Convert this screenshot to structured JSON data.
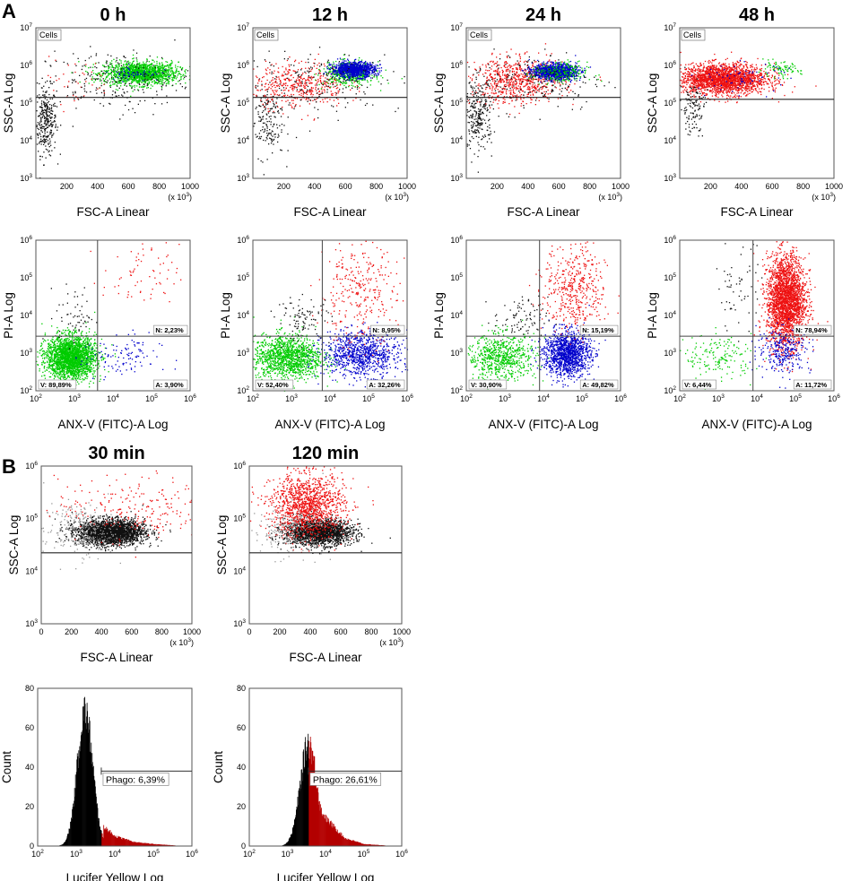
{
  "figure": {
    "panel_A_label": "A",
    "panel_B_label": "B",
    "x1e3": "(x 10",
    "x1e3_exp": "3",
    "x1e3_close": ")"
  },
  "colors": {
    "viable": "#00cc00",
    "early_apoptotic": "#0000cc",
    "necrotic": "#ee1111",
    "debris": "#111111",
    "gate_line": "#333333",
    "hist_black": "#000000",
    "hist_red": "#b30000"
  },
  "chart_data": [
    {
      "id": "A-scatter-0h",
      "type": "scatter",
      "title": "0 h",
      "gate": "Cells",
      "xlabel": "FSC-A Linear",
      "ylabel": "SSC-A Log",
      "xlim": [
        0,
        1000
      ],
      "xticks": [
        200,
        400,
        600,
        800,
        1000
      ],
      "yticks": [
        "3",
        "4",
        "5",
        "6",
        "7"
      ],
      "gate_y_exp": 5.15,
      "populations": [
        {
          "name": "debris",
          "color": "#111111",
          "cx": 60,
          "cy": 4.55,
          "sx": 35,
          "sy": 0.45,
          "n": 320
        },
        {
          "name": "viable",
          "color": "#00cc00",
          "cx": 680,
          "cy": 5.8,
          "sx": 120,
          "sy": 0.15,
          "n": 1500
        },
        {
          "name": "early_apoptotic",
          "color": "#0000cc",
          "cx": 640,
          "cy": 5.8,
          "sx": 80,
          "sy": 0.1,
          "n": 60
        },
        {
          "name": "necrotic",
          "color": "#ee1111",
          "cx": 250,
          "cy": 5.6,
          "sx": 120,
          "sy": 0.3,
          "n": 40
        },
        {
          "name": "background",
          "color": "#111111",
          "cx": 500,
          "cy": 5.6,
          "sx": 250,
          "sy": 0.4,
          "n": 250
        }
      ]
    },
    {
      "id": "A-scatter-12h",
      "type": "scatter",
      "title": "12 h",
      "gate": "Cells",
      "xlabel": "FSC-A Linear",
      "ylabel": "SSC-A Log",
      "xlim": [
        0,
        1000
      ],
      "xticks": [
        200,
        400,
        600,
        800,
        1000
      ],
      "yticks": [
        "3",
        "4",
        "5",
        "6",
        "7"
      ],
      "gate_y_exp": 5.15,
      "populations": [
        {
          "name": "debris",
          "color": "#111111",
          "cx": 80,
          "cy": 4.6,
          "sx": 60,
          "sy": 0.5,
          "n": 200
        },
        {
          "name": "necrotic",
          "color": "#ee1111",
          "cx": 300,
          "cy": 5.5,
          "sx": 150,
          "sy": 0.3,
          "n": 450
        },
        {
          "name": "viable",
          "color": "#00cc00",
          "cx": 620,
          "cy": 5.8,
          "sx": 80,
          "sy": 0.15,
          "n": 500
        },
        {
          "name": "early_apoptotic",
          "color": "#0000cc",
          "cx": 650,
          "cy": 5.9,
          "sx": 70,
          "sy": 0.1,
          "n": 900
        },
        {
          "name": "background",
          "color": "#111111",
          "cx": 450,
          "cy": 5.6,
          "sx": 250,
          "sy": 0.4,
          "n": 180
        }
      ]
    },
    {
      "id": "A-scatter-24h",
      "type": "scatter",
      "title": "24 h",
      "gate": "Cells",
      "xlabel": "FSC-A Linear",
      "ylabel": "SSC-A Log",
      "xlim": [
        0,
        1000
      ],
      "xticks": [
        200,
        400,
        600,
        800,
        1000
      ],
      "yticks": [
        "3",
        "4",
        "5",
        "6",
        "7"
      ],
      "gate_y_exp": 5.15,
      "populations": [
        {
          "name": "debris",
          "color": "#111111",
          "cx": 70,
          "cy": 4.7,
          "sx": 50,
          "sy": 0.45,
          "n": 300
        },
        {
          "name": "necrotic",
          "color": "#ee1111",
          "cx": 330,
          "cy": 5.6,
          "sx": 150,
          "sy": 0.3,
          "n": 700
        },
        {
          "name": "early_apoptotic",
          "color": "#0000cc",
          "cx": 570,
          "cy": 5.85,
          "sx": 70,
          "sy": 0.1,
          "n": 1200
        },
        {
          "name": "viable",
          "color": "#00cc00",
          "cx": 600,
          "cy": 5.8,
          "sx": 90,
          "sy": 0.15,
          "n": 200
        },
        {
          "name": "background",
          "color": "#111111",
          "cx": 400,
          "cy": 5.6,
          "sx": 250,
          "sy": 0.4,
          "n": 200
        }
      ]
    },
    {
      "id": "A-scatter-48h",
      "type": "scatter",
      "title": "48 h",
      "gate": "Cells",
      "xlabel": "FSC-A Linear",
      "ylabel": "SSC-A Log",
      "xlim": [
        0,
        1000
      ],
      "xticks": [
        200,
        400,
        600,
        800,
        1000
      ],
      "yticks": [
        "3",
        "4",
        "5",
        "6",
        "7"
      ],
      "gate_y_exp": 5.1,
      "populations": [
        {
          "name": "necrotic",
          "color": "#ee1111",
          "cx": 280,
          "cy": 5.65,
          "sx": 140,
          "sy": 0.2,
          "n": 2200
        },
        {
          "name": "debris",
          "color": "#111111",
          "cx": 80,
          "cy": 4.9,
          "sx": 40,
          "sy": 0.35,
          "n": 120
        },
        {
          "name": "viable",
          "color": "#00cc00",
          "cx": 640,
          "cy": 5.9,
          "sx": 70,
          "sy": 0.1,
          "n": 90
        },
        {
          "name": "early_apoptotic",
          "color": "#0000cc",
          "cx": 400,
          "cy": 5.7,
          "sx": 150,
          "sy": 0.2,
          "n": 70
        }
      ]
    },
    {
      "id": "A-annexin-0h",
      "type": "scatter",
      "xlabel": "ANX-V (FITC)-A Log",
      "ylabel": "PI-A Log",
      "xticks": [
        "2",
        "3",
        "4",
        "5",
        "6"
      ],
      "yticks": [
        "2",
        "3",
        "4",
        "5",
        "6"
      ],
      "quad_x_exp": 3.6,
      "quad_y_exp": 3.45,
      "quadrants": {
        "V": "V: 89,89%",
        "A": "A: 3,90%",
        "N": "N: 2,23%"
      },
      "populations": [
        {
          "name": "viable",
          "color": "#00cc00",
          "cx": 2.9,
          "cy": 2.9,
          "sx": 0.32,
          "sy": 0.28,
          "n": 2400
        },
        {
          "name": "early_apoptotic",
          "color": "#0000cc",
          "cx": 4.2,
          "cy": 2.9,
          "sx": 0.5,
          "sy": 0.3,
          "n": 110
        },
        {
          "name": "necrotic",
          "color": "#ee1111",
          "cx": 4.7,
          "cy": 5.0,
          "sx": 0.5,
          "sy": 0.45,
          "n": 70
        },
        {
          "name": "debris",
          "color": "#111111",
          "cx": 3.0,
          "cy": 4.0,
          "sx": 0.25,
          "sy": 0.4,
          "n": 60
        }
      ]
    },
    {
      "id": "A-annexin-12h",
      "type": "scatter",
      "xlabel": "ANX-V (FITC)-A Log",
      "ylabel": "PI-A Log",
      "xticks": [
        "2",
        "3",
        "4",
        "5",
        "6"
      ],
      "yticks": [
        "2",
        "3",
        "4",
        "5",
        "6"
      ],
      "quad_x_exp": 3.8,
      "quad_y_exp": 3.45,
      "quadrants": {
        "V": "V: 52,40%",
        "A": "A: 32,26%",
        "N": "N: 8,95%"
      },
      "populations": [
        {
          "name": "viable",
          "color": "#00cc00",
          "cx": 2.9,
          "cy": 2.9,
          "sx": 0.45,
          "sy": 0.3,
          "n": 1300
        },
        {
          "name": "early_apoptotic",
          "color": "#0000cc",
          "cx": 4.8,
          "cy": 3.0,
          "sx": 0.5,
          "sy": 0.3,
          "n": 950
        },
        {
          "name": "necrotic",
          "color": "#ee1111",
          "cx": 4.7,
          "cy": 4.6,
          "sx": 0.5,
          "sy": 0.7,
          "n": 300
        },
        {
          "name": "debris",
          "color": "#111111",
          "cx": 3.3,
          "cy": 3.9,
          "sx": 0.35,
          "sy": 0.3,
          "n": 100
        }
      ]
    },
    {
      "id": "A-annexin-24h",
      "type": "scatter",
      "xlabel": "ANX-V (FITC)-A Log",
      "ylabel": "PI-A Log",
      "xticks": [
        "2",
        "3",
        "4",
        "5",
        "6"
      ],
      "yticks": [
        "2",
        "3",
        "4",
        "5",
        "6"
      ],
      "quad_x_exp": 3.9,
      "quad_y_exp": 3.45,
      "quadrants": {
        "V": "V: 30,90%",
        "A": "A: 49,82%",
        "N": "N: 15,19%"
      },
      "populations": [
        {
          "name": "viable",
          "color": "#00cc00",
          "cx": 2.9,
          "cy": 2.9,
          "sx": 0.45,
          "sy": 0.3,
          "n": 700
        },
        {
          "name": "early_apoptotic",
          "color": "#0000cc",
          "cx": 4.6,
          "cy": 3.0,
          "sx": 0.3,
          "sy": 0.3,
          "n": 1300
        },
        {
          "name": "necrotic",
          "color": "#ee1111",
          "cx": 4.8,
          "cy": 4.7,
          "sx": 0.4,
          "sy": 0.6,
          "n": 450
        },
        {
          "name": "debris",
          "color": "#111111",
          "cx": 3.4,
          "cy": 3.9,
          "sx": 0.35,
          "sy": 0.3,
          "n": 90
        }
      ]
    },
    {
      "id": "A-annexin-48h",
      "type": "scatter",
      "xlabel": "ANX-V (FITC)-A Log",
      "ylabel": "PI-A Log",
      "xticks": [
        "2",
        "3",
        "4",
        "5",
        "6"
      ],
      "yticks": [
        "2",
        "3",
        "4",
        "5",
        "6"
      ],
      "quad_x_exp": 3.9,
      "quad_y_exp": 3.45,
      "quadrants": {
        "V": "V: 6,44%",
        "A": "A: 11,72%",
        "N": "N: 78,94%"
      },
      "populations": [
        {
          "name": "necrotic",
          "color": "#ee1111",
          "cx": 4.75,
          "cy": 4.4,
          "sx": 0.25,
          "sy": 0.6,
          "n": 2600
        },
        {
          "name": "early_apoptotic",
          "color": "#0000cc",
          "cx": 4.7,
          "cy": 3.1,
          "sx": 0.35,
          "sy": 0.3,
          "n": 280
        },
        {
          "name": "viable",
          "color": "#00cc00",
          "cx": 3.0,
          "cy": 2.9,
          "sx": 0.45,
          "sy": 0.3,
          "n": 160
        },
        {
          "name": "debris",
          "color": "#111111",
          "cx": 3.5,
          "cy": 4.8,
          "sx": 0.3,
          "sy": 0.6,
          "n": 60
        }
      ]
    },
    {
      "id": "B-scatter-30min",
      "type": "scatter",
      "title": "30 min",
      "xlabel": "FSC-A Linear",
      "ylabel": "SSC-A Log",
      "xlim": [
        0,
        1000
      ],
      "xticks": [
        0,
        200,
        400,
        600,
        800,
        1000
      ],
      "yticks": [
        "3",
        "4",
        "5",
        "6"
      ],
      "gate_y_exp": 4.35,
      "populations": [
        {
          "name": "cells",
          "color": "#111111",
          "cx": 460,
          "cy": 4.75,
          "sx": 110,
          "sy": 0.12,
          "n": 2500
        },
        {
          "name": "gray",
          "color": "#999999",
          "cx": 250,
          "cy": 4.8,
          "sx": 120,
          "sy": 0.25,
          "n": 250
        },
        {
          "name": "phagocytic",
          "color": "#ee1111",
          "cx": 600,
          "cy": 5.2,
          "sx": 250,
          "sy": 0.3,
          "n": 220
        }
      ]
    },
    {
      "id": "B-scatter-120min",
      "type": "scatter",
      "title": "120 min",
      "xlabel": "FSC-A Linear",
      "ylabel": "SSC-A Log",
      "xlim": [
        0,
        1000
      ],
      "xticks": [
        0,
        200,
        400,
        600,
        800,
        1000
      ],
      "yticks": [
        "3",
        "4",
        "5",
        "6"
      ],
      "gate_y_exp": 4.35,
      "populations": [
        {
          "name": "cells",
          "color": "#111111",
          "cx": 450,
          "cy": 4.75,
          "sx": 110,
          "sy": 0.12,
          "n": 2000
        },
        {
          "name": "phagocytic",
          "color": "#ee1111",
          "cx": 380,
          "cy": 5.25,
          "sx": 120,
          "sy": 0.3,
          "n": 1300
        },
        {
          "name": "gray",
          "color": "#999999",
          "cx": 250,
          "cy": 4.8,
          "sx": 120,
          "sy": 0.25,
          "n": 200
        }
      ]
    },
    {
      "id": "B-hist-30min",
      "type": "area",
      "xlabel": "Lucifer Yellow Log",
      "ylabel": "Count",
      "xticks": [
        "2",
        "3",
        "4",
        "5",
        "6"
      ],
      "yticks": [
        0,
        20,
        40,
        60,
        80
      ],
      "ylim": [
        0,
        80
      ],
      "peak_exp": 3.22,
      "peak_count": 68,
      "spread": 0.2,
      "tail": [
        [
          3.7,
          10
        ],
        [
          4.0,
          5
        ],
        [
          4.5,
          2
        ],
        [
          5.0,
          1
        ]
      ],
      "gate_exp": 3.65,
      "gate_label": "Phago: 6,39%",
      "gate_y": 38
    },
    {
      "id": "B-hist-120min",
      "type": "area",
      "xlabel": "Lucifer Yellow Log",
      "ylabel": "Count",
      "xticks": [
        "2",
        "3",
        "4",
        "5",
        "6"
      ],
      "yticks": [
        0,
        20,
        40,
        60,
        80
      ],
      "ylim": [
        0,
        80
      ],
      "peak_exp": 3.55,
      "peak_count": 52,
      "spread": 0.22,
      "tail": [
        [
          3.7,
          24
        ],
        [
          4.0,
          14
        ],
        [
          4.5,
          4
        ],
        [
          5.0,
          1
        ]
      ],
      "gate_exp": 3.55,
      "gate_label": "Phago: 26,61%",
      "gate_y": 38
    }
  ]
}
